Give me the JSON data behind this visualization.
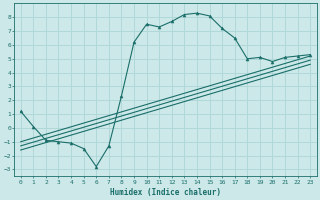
{
  "xlabel": "Humidex (Indice chaleur)",
  "ylabel": "",
  "background_color": "#cce8e8",
  "grid_color": "#b0d8d8",
  "line_color": "#1a6e6a",
  "xlim": [
    -0.5,
    23.5
  ],
  "ylim": [
    -3.5,
    9.0
  ],
  "xticks": [
    0,
    1,
    2,
    3,
    4,
    5,
    6,
    7,
    8,
    9,
    10,
    11,
    12,
    13,
    14,
    15,
    16,
    17,
    18,
    19,
    20,
    21,
    22,
    23
  ],
  "yticks": [
    -3,
    -2,
    -1,
    0,
    1,
    2,
    3,
    4,
    5,
    6,
    7,
    8
  ],
  "main_x": [
    0,
    1,
    2,
    3,
    4,
    5,
    6,
    7,
    8,
    9,
    10,
    11,
    12,
    13,
    14,
    15,
    16,
    17,
    18,
    19,
    20,
    21,
    22,
    23
  ],
  "main_y": [
    1.2,
    0.1,
    -0.9,
    -1.0,
    -1.1,
    -1.5,
    -2.8,
    -1.3,
    2.3,
    6.2,
    7.5,
    7.3,
    7.7,
    8.2,
    8.3,
    8.1,
    7.2,
    6.5,
    5.0,
    5.1,
    4.8,
    5.1,
    5.2,
    5.3
  ],
  "line1_x": [
    0,
    23
  ],
  "line1_y": [
    -1.0,
    5.2
  ],
  "line2_x": [
    0,
    23
  ],
  "line2_y": [
    -1.3,
    4.9
  ],
  "line3_x": [
    0,
    23
  ],
  "line3_y": [
    -1.6,
    4.6
  ]
}
